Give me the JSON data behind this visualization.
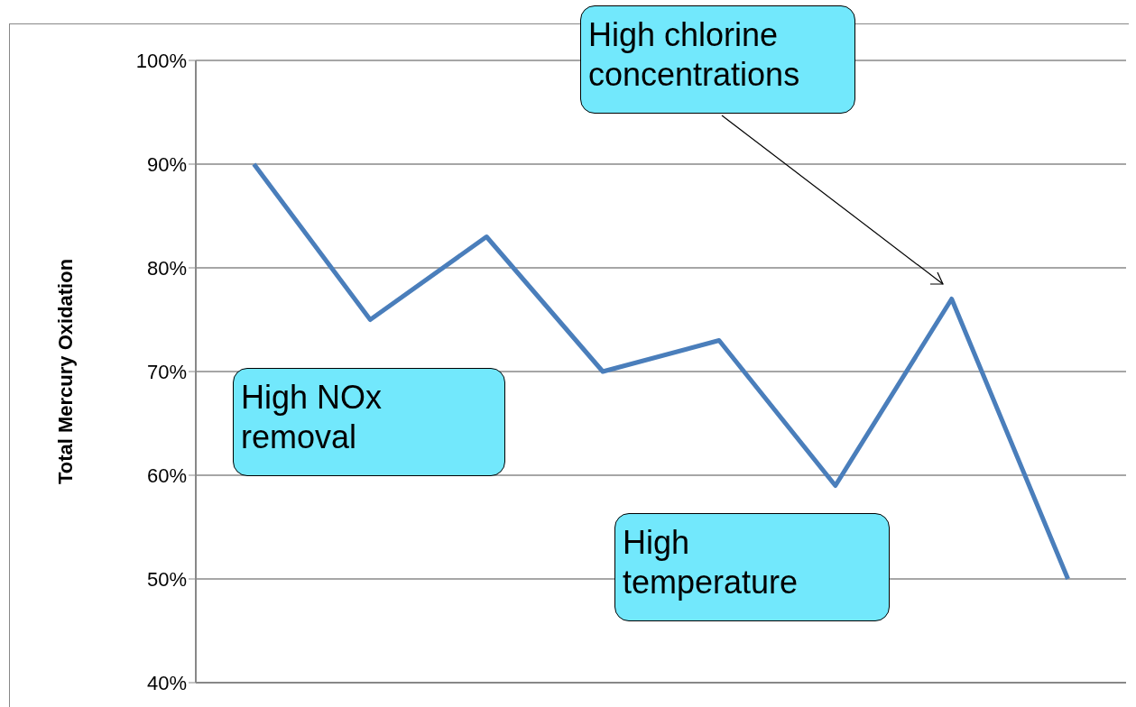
{
  "chart_data": {
    "type": "line",
    "ylabel": "Total Mercury Oxidation",
    "categories": [
      null,
      null,
      null,
      null,
      null,
      null,
      null,
      null
    ],
    "series": [
      {
        "color": "#4a7ebb",
        "values": [
          90,
          75,
          83,
          70,
          73,
          59,
          77,
          50
        ]
      }
    ],
    "ylim": [
      40,
      100
    ],
    "yticks": [
      {
        "value": 40,
        "label": "40%"
      },
      {
        "value": 50,
        "label": "50%"
      },
      {
        "value": 60,
        "label": "60%"
      },
      {
        "value": 70,
        "label": "70%"
      },
      {
        "value": 80,
        "label": "80%"
      },
      {
        "value": 90,
        "label": "90%"
      },
      {
        "value": 100,
        "label": "100%"
      }
    ],
    "grid": "y",
    "tick_labels": "y",
    "marker": "none",
    "line_style": "solid",
    "legend": false,
    "annotations": [
      "High chlorine concentrations",
      "High NOx removal",
      "High temperature"
    ]
  }
}
